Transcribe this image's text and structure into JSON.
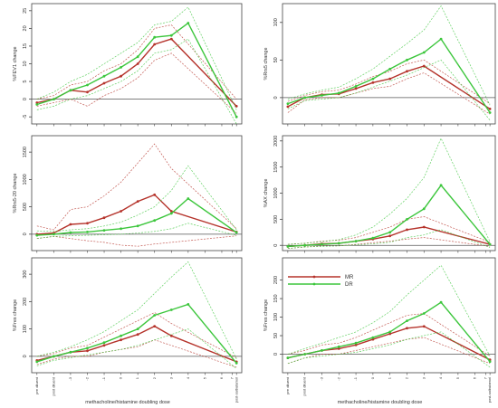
{
  "figure": {
    "xlabel": "methacholine/histamine doubling dose",
    "tick_labels": [
      "pre diluent",
      "post diluent",
      "-3",
      "-2",
      "-1",
      "0",
      "1",
      "2",
      "3",
      "4",
      "5",
      "6",
      "7",
      "post-salbutamol"
    ],
    "colors": {
      "MR": "#b5332b",
      "DR": "#3cc63c",
      "zero_line": "#555555",
      "frame": "#444444"
    },
    "legend": {
      "placement": "inside bottom-right panel, top-left",
      "entries": [
        "MR",
        "DR"
      ]
    }
  },
  "chart_data": [
    {
      "type": "line",
      "ylabel": "%FEV1 change",
      "ylim": [
        -7,
        27
      ],
      "yticks": [
        -5,
        0,
        5,
        10,
        15,
        20,
        25
      ],
      "x": [
        0,
        1,
        2,
        3,
        4,
        5,
        6,
        7,
        8,
        9,
        10,
        11,
        12,
        13
      ],
      "series": [
        {
          "name": "MR",
          "values": [
            -1,
            0,
            2.5,
            2,
            4.5,
            6.5,
            10,
            15.5,
            17,
            null,
            null,
            null,
            null,
            -2
          ],
          "ci_upper": [
            0,
            1,
            4,
            5,
            8,
            10,
            14,
            20,
            21,
            null,
            null,
            null,
            null,
            0
          ],
          "ci_lower": [
            -2,
            -1,
            0,
            -2,
            1,
            3,
            6,
            11,
            13,
            null,
            null,
            null,
            null,
            -4
          ]
        },
        {
          "name": "DR",
          "values": [
            -1.5,
            0,
            2.5,
            4,
            6.5,
            9,
            12,
            17.5,
            18,
            21.5,
            null,
            null,
            null,
            -5
          ],
          "ci_upper": [
            0,
            2,
            5,
            7,
            10,
            13,
            16,
            21,
            22,
            26,
            null,
            null,
            null,
            -3
          ],
          "ci_lower": [
            -3,
            -2,
            0,
            1,
            3,
            5,
            8,
            13,
            14,
            17,
            null,
            null,
            null,
            -7
          ]
        }
      ]
    },
    {
      "type": "line",
      "ylabel": "%Rrs5 change",
      "ylim": [
        -35,
        125
      ],
      "yticks": [
        0,
        50,
        100
      ],
      "x": [
        0,
        1,
        2,
        3,
        4,
        5,
        6,
        7,
        8,
        9,
        10,
        11,
        12,
        13
      ],
      "series": [
        {
          "name": "MR",
          "values": [
            -12,
            0,
            4,
            5,
            12,
            20,
            25,
            35,
            42,
            null,
            null,
            null,
            null,
            -15
          ],
          "ci_upper": [
            -5,
            3,
            8,
            10,
            18,
            28,
            35,
            45,
            50,
            null,
            null,
            null,
            null,
            -8
          ],
          "ci_lower": [
            -20,
            -3,
            0,
            0,
            6,
            12,
            15,
            25,
            33,
            null,
            null,
            null,
            null,
            -22
          ]
        },
        {
          "name": "DR",
          "values": [
            -8,
            0,
            3,
            6,
            15,
            25,
            38,
            50,
            60,
            78,
            null,
            null,
            null,
            -20
          ],
          "ci_upper": [
            -2,
            5,
            10,
            14,
            25,
            38,
            55,
            72,
            90,
            122,
            null,
            null,
            null,
            -10
          ],
          "ci_lower": [
            -15,
            -4,
            -2,
            0,
            6,
            14,
            22,
            30,
            40,
            50,
            null,
            null,
            null,
            -30
          ]
        }
      ]
    },
    {
      "type": "line",
      "ylabel": "%Rrs5-20 change",
      "ylim": [
        -300,
        1800
      ],
      "yticks": [
        0,
        500,
        1000,
        1500
      ],
      "x": [
        0,
        1,
        2,
        3,
        4,
        5,
        6,
        7,
        8,
        9,
        10,
        11,
        12,
        13
      ],
      "series": [
        {
          "name": "MR",
          "values": [
            0,
            20,
            180,
            200,
            300,
            420,
            600,
            720,
            420,
            null,
            null,
            null,
            null,
            40
          ],
          "ci_upper": [
            150,
            80,
            450,
            500,
            700,
            950,
            1300,
            1650,
            1200,
            null,
            null,
            null,
            null,
            100
          ],
          "ci_lower": [
            -80,
            -40,
            -80,
            -120,
            -150,
            -200,
            -220,
            -180,
            -150,
            null,
            null,
            null,
            null,
            -30
          ]
        },
        {
          "name": "DR",
          "values": [
            -20,
            0,
            30,
            40,
            70,
            100,
            150,
            250,
            380,
            650,
            null,
            null,
            null,
            30
          ],
          "ci_upper": [
            60,
            50,
            80,
            100,
            150,
            220,
            350,
            500,
            800,
            1250,
            null,
            null,
            null,
            80
          ],
          "ci_lower": [
            -80,
            -40,
            -30,
            -20,
            -10,
            0,
            20,
            50,
            100,
            200,
            null,
            null,
            null,
            -20
          ]
        }
      ]
    },
    {
      "type": "line",
      "ylabel": "%AX change",
      "ylim": [
        -100,
        2100
      ],
      "yticks": [
        0,
        500,
        1000,
        1500,
        2000
      ],
      "x": [
        0,
        1,
        2,
        3,
        4,
        5,
        6,
        7,
        8,
        9,
        10,
        11,
        12,
        13
      ],
      "series": [
        {
          "name": "MR",
          "values": [
            -20,
            0,
            30,
            40,
            80,
            120,
            180,
            300,
            350,
            null,
            null,
            null,
            null,
            20
          ],
          "ci_upper": [
            20,
            40,
            80,
            100,
            150,
            250,
            350,
            500,
            550,
            null,
            null,
            null,
            null,
            60
          ],
          "ci_lower": [
            -60,
            -30,
            -10,
            -10,
            20,
            50,
            80,
            120,
            150,
            null,
            null,
            null,
            null,
            -20
          ]
        },
        {
          "name": "DR",
          "values": [
            -20,
            0,
            20,
            40,
            80,
            140,
            250,
            500,
            700,
            1150,
            null,
            null,
            null,
            20
          ],
          "ci_upper": [
            20,
            40,
            70,
            110,
            200,
            350,
            600,
            900,
            1300,
            2050,
            null,
            null,
            null,
            70
          ],
          "ci_lower": [
            -60,
            -30,
            -20,
            -10,
            10,
            30,
            60,
            150,
            200,
            300,
            null,
            null,
            null,
            -40
          ]
        }
      ]
    },
    {
      "type": "line",
      "ylabel": "%Fres change",
      "ylim": [
        -60,
        360
      ],
      "yticks": [
        0,
        100,
        200,
        300
      ],
      "x": [
        0,
        1,
        2,
        3,
        4,
        5,
        6,
        7,
        8,
        9,
        10,
        11,
        12,
        13
      ],
      "series": [
        {
          "name": "MR",
          "values": [
            -15,
            0,
            15,
            20,
            40,
            60,
            80,
            110,
            75,
            null,
            null,
            null,
            null,
            -20
          ],
          "ci_upper": [
            0,
            10,
            30,
            40,
            70,
            100,
            130,
            160,
            120,
            null,
            null,
            null,
            null,
            -5
          ],
          "ci_lower": [
            -30,
            -10,
            0,
            0,
            15,
            25,
            35,
            60,
            40,
            null,
            null,
            null,
            null,
            -40
          ]
        },
        {
          "name": "DR",
          "values": [
            -20,
            0,
            15,
            30,
            50,
            75,
            100,
            150,
            170,
            190,
            null,
            null,
            null,
            -25
          ],
          "ci_upper": [
            0,
            15,
            35,
            60,
            90,
            130,
            170,
            230,
            290,
            345,
            null,
            null,
            null,
            -10
          ],
          "ci_lower": [
            -35,
            -15,
            -5,
            5,
            15,
            25,
            40,
            60,
            80,
            100,
            null,
            null,
            null,
            -45
          ]
        }
      ]
    },
    {
      "type": "line",
      "ylabel": "%Fres change",
      "ylim": [
        -50,
        260
      ],
      "yticks": [
        0,
        50,
        100,
        150,
        200
      ],
      "x": [
        0,
        1,
        2,
        3,
        4,
        5,
        6,
        7,
        8,
        9,
        10,
        11,
        12,
        13
      ],
      "series": [
        {
          "name": "MR",
          "values": [
            -10,
            0,
            10,
            15,
            25,
            40,
            55,
            70,
            75,
            null,
            null,
            null,
            null,
            -15
          ],
          "ci_upper": [
            0,
            10,
            25,
            30,
            45,
            65,
            85,
            105,
            110,
            null,
            null,
            null,
            null,
            -5
          ],
          "ci_lower": [
            -25,
            -10,
            0,
            0,
            10,
            20,
            30,
            40,
            45,
            null,
            null,
            null,
            null,
            -25
          ]
        },
        {
          "name": "DR",
          "values": [
            -10,
            0,
            10,
            20,
            30,
            45,
            60,
            90,
            110,
            140,
            null,
            null,
            null,
            -20
          ],
          "ci_upper": [
            0,
            15,
            30,
            45,
            60,
            85,
            115,
            160,
            200,
            240,
            null,
            null,
            null,
            -5
          ],
          "ci_lower": [
            -25,
            -10,
            -5,
            0,
            5,
            15,
            25,
            40,
            50,
            60,
            null,
            null,
            null,
            -35
          ]
        }
      ]
    }
  ]
}
